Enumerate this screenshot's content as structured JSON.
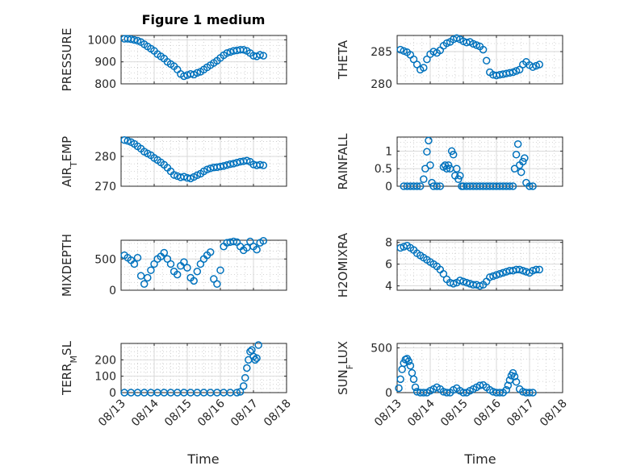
{
  "figure": {
    "title": "Figure 1 medium",
    "xlabel": "Time",
    "x_tick_labels": [
      "08/13",
      "08/14",
      "08/15",
      "08/16",
      "08/17",
      "08/18"
    ],
    "marker_color": "#0072BD"
  },
  "chart_data": [
    {
      "type": "scatter",
      "ylabel": "PRESSURE",
      "yticks": [
        "800",
        "900",
        "1000"
      ],
      "ylim": [
        800,
        1020
      ],
      "series": [
        {
          "x": [
            0.1,
            0.2,
            0.3,
            0.4,
            0.5,
            0.6,
            0.7,
            0.8,
            0.9,
            1.0,
            1.1,
            1.2,
            1.3,
            1.4,
            1.5,
            1.6,
            1.7,
            1.8,
            1.9,
            2.0,
            2.1,
            2.2,
            2.3,
            2.4,
            2.5,
            2.6,
            2.7,
            2.8,
            2.9,
            3.0,
            3.1,
            3.2,
            3.3,
            3.4,
            3.5,
            3.6,
            3.7,
            3.8,
            3.9,
            4.0,
            4.1,
            4.2,
            4.3
          ],
          "y": [
            1005,
            1005,
            1003,
            1000,
            996,
            990,
            980,
            970,
            960,
            950,
            935,
            925,
            915,
            900,
            890,
            880,
            865,
            845,
            835,
            840,
            845,
            842,
            850,
            855,
            865,
            875,
            885,
            895,
            905,
            918,
            930,
            940,
            945,
            950,
            952,
            955,
            955,
            950,
            940,
            928,
            925,
            932,
            928
          ]
        }
      ]
    },
    {
      "type": "scatter",
      "ylabel": "THETA",
      "yticks": [
        "280",
        "285"
      ],
      "ylim": [
        280,
        287.5
      ],
      "series": [
        {
          "x": [
            0.1,
            0.2,
            0.3,
            0.4,
            0.5,
            0.6,
            0.7,
            0.8,
            0.9,
            1.0,
            1.1,
            1.2,
            1.3,
            1.4,
            1.5,
            1.6,
            1.7,
            1.8,
            1.9,
            2.0,
            2.1,
            2.2,
            2.3,
            2.4,
            2.5,
            2.6,
            2.7,
            2.8,
            2.9,
            3.0,
            3.1,
            3.2,
            3.3,
            3.4,
            3.5,
            3.6,
            3.7,
            3.8,
            3.9,
            4.0,
            4.1,
            4.2,
            4.3
          ],
          "y": [
            285.3,
            285.1,
            284.9,
            284.5,
            283.8,
            283.0,
            282.2,
            282.5,
            283.8,
            284.6,
            285.0,
            284.8,
            285.2,
            285.9,
            286.3,
            286.5,
            286.9,
            287.1,
            286.9,
            286.6,
            286.4,
            286.5,
            286.2,
            286.0,
            285.8,
            285.3,
            283.6,
            281.8,
            281.4,
            281.3,
            281.4,
            281.5,
            281.6,
            281.7,
            281.8,
            282.0,
            282.2,
            283.0,
            283.4,
            282.9,
            282.6,
            282.8,
            283.0
          ]
        }
      ]
    },
    {
      "type": "scatter",
      "ylabel": "AIR_TEMP",
      "ylabel_main": "AIR",
      "ylabel_sub": "T",
      "ylabel_rest": "EMP",
      "yticks": [
        "270",
        "280"
      ],
      "ylim": [
        270,
        286.5
      ],
      "series": [
        {
          "x": [
            0.1,
            0.2,
            0.3,
            0.4,
            0.5,
            0.6,
            0.7,
            0.8,
            0.9,
            1.0,
            1.1,
            1.2,
            1.3,
            1.4,
            1.5,
            1.6,
            1.7,
            1.8,
            1.9,
            2.0,
            2.1,
            2.2,
            2.3,
            2.4,
            2.5,
            2.6,
            2.7,
            2.8,
            2.9,
            3.0,
            3.1,
            3.2,
            3.3,
            3.4,
            3.5,
            3.6,
            3.7,
            3.8,
            3.9,
            4.0,
            4.1,
            4.2,
            4.3
          ],
          "y": [
            285.5,
            285.2,
            284.8,
            284.2,
            283.4,
            282.6,
            281.6,
            281.0,
            280.4,
            279.5,
            278.8,
            278.0,
            277.2,
            276.2,
            275.0,
            273.8,
            273.4,
            273.0,
            273.2,
            272.8,
            272.6,
            273.1,
            273.7,
            274.2,
            275.0,
            275.6,
            276.0,
            276.3,
            276.4,
            276.6,
            276.8,
            277.1,
            277.4,
            277.6,
            277.9,
            278.2,
            278.4,
            278.6,
            278.2,
            277.3,
            277.0,
            277.2,
            277.0
          ]
        }
      ]
    },
    {
      "type": "scatter",
      "ylabel": "RAINFALL",
      "yticks": [
        "0",
        "0.5",
        "1"
      ],
      "ylim": [
        0,
        1.4
      ],
      "series": [
        {
          "x": [
            0.2,
            0.3,
            0.4,
            0.5,
            0.6,
            0.7,
            0.8,
            0.85,
            0.9,
            0.95,
            1.0,
            1.05,
            1.1,
            1.2,
            1.3,
            1.4,
            1.45,
            1.5,
            1.55,
            1.6,
            1.65,
            1.7,
            1.75,
            1.8,
            1.85,
            1.9,
            1.95,
            2.0,
            2.1,
            2.2,
            2.3,
            2.4,
            2.5,
            2.6,
            2.7,
            2.8,
            2.9,
            3.0,
            3.1,
            3.2,
            3.3,
            3.4,
            3.5,
            3.55,
            3.6,
            3.65,
            3.7,
            3.75,
            3.8,
            3.85,
            3.9,
            4.0,
            4.1
          ],
          "y": [
            0,
            0,
            0,
            0,
            0,
            0,
            0.2,
            0.5,
            0.98,
            1.3,
            0.6,
            0.1,
            0,
            0,
            0,
            0.55,
            0.6,
            0.5,
            0.6,
            0.5,
            1.0,
            0.9,
            0.3,
            0.5,
            0.2,
            0.3,
            0,
            0,
            0,
            0,
            0,
            0,
            0,
            0,
            0,
            0,
            0,
            0,
            0,
            0,
            0,
            0,
            0,
            0.5,
            0.9,
            1.2,
            0.6,
            0.4,
            0.7,
            0.8,
            0.1,
            0,
            0
          ]
        }
      ]
    },
    {
      "type": "scatter",
      "ylabel": "MIXDEPTH",
      "yticks": [
        "0",
        "500"
      ],
      "ylim": [
        0,
        800
      ],
      "series": [
        {
          "x": [
            0.1,
            0.2,
            0.3,
            0.4,
            0.5,
            0.6,
            0.7,
            0.8,
            0.9,
            1.0,
            1.1,
            1.2,
            1.3,
            1.4,
            1.5,
            1.6,
            1.7,
            1.8,
            1.9,
            2.0,
            2.1,
            2.2,
            2.3,
            2.4,
            2.5,
            2.6,
            2.7,
            2.8,
            2.9,
            3.0,
            3.1,
            3.2,
            3.3,
            3.4,
            3.5,
            3.6,
            3.7,
            3.8,
            3.9,
            4.0,
            4.1,
            4.2,
            4.3
          ],
          "y": [
            560,
            520,
            480,
            420,
            520,
            230,
            100,
            200,
            320,
            420,
            500,
            540,
            600,
            500,
            420,
            300,
            250,
            390,
            450,
            360,
            200,
            150,
            300,
            420,
            500,
            560,
            610,
            180,
            100,
            320,
            700,
            760,
            770,
            780,
            770,
            700,
            640,
            680,
            780,
            700,
            650,
            760,
            790
          ]
        }
      ]
    },
    {
      "type": "scatter",
      "ylabel": "H2OMIXRA",
      "yticks": [
        "4",
        "6",
        "8"
      ],
      "ylim": [
        3.6,
        8.2
      ],
      "series": [
        {
          "x": [
            0.1,
            0.2,
            0.3,
            0.4,
            0.5,
            0.6,
            0.7,
            0.8,
            0.9,
            1.0,
            1.1,
            1.2,
            1.3,
            1.4,
            1.5,
            1.6,
            1.7,
            1.8,
            1.9,
            2.0,
            2.1,
            2.2,
            2.3,
            2.4,
            2.5,
            2.6,
            2.7,
            2.8,
            2.9,
            3.0,
            3.1,
            3.2,
            3.3,
            3.4,
            3.5,
            3.6,
            3.7,
            3.8,
            3.9,
            4.0,
            4.1,
            4.2,
            4.3
          ],
          "y": [
            7.5,
            7.6,
            7.7,
            7.5,
            7.3,
            7.0,
            6.8,
            6.6,
            6.4,
            6.2,
            6.0,
            5.8,
            5.5,
            5.1,
            4.6,
            4.3,
            4.2,
            4.3,
            4.5,
            4.4,
            4.3,
            4.2,
            4.1,
            4.1,
            4.0,
            4.1,
            4.4,
            4.8,
            4.9,
            5.0,
            5.1,
            5.2,
            5.3,
            5.4,
            5.4,
            5.5,
            5.5,
            5.4,
            5.3,
            5.2,
            5.4,
            5.5,
            5.5
          ]
        }
      ]
    },
    {
      "type": "scatter",
      "ylabel": "TERR_MSL",
      "ylabel_main": "TERR",
      "ylabel_sub": "M",
      "ylabel_rest": "SL",
      "yticks": [
        "0",
        "100",
        "200"
      ],
      "ylim": [
        0,
        300
      ],
      "series": [
        {
          "x": [
            0.1,
            0.3,
            0.5,
            0.7,
            0.9,
            1.1,
            1.3,
            1.5,
            1.7,
            1.9,
            2.1,
            2.3,
            2.5,
            2.7,
            2.9,
            3.1,
            3.3,
            3.5,
            3.6,
            3.7,
            3.75,
            3.8,
            3.85,
            3.9,
            3.95,
            4.0,
            4.05,
            4.1,
            4.15
          ],
          "y": [
            0,
            0,
            0,
            0,
            0,
            0,
            0,
            0,
            0,
            0,
            0,
            0,
            0,
            0,
            0,
            0,
            0,
            0,
            5,
            40,
            90,
            150,
            200,
            250,
            260,
            220,
            200,
            210,
            290
          ]
        }
      ]
    },
    {
      "type": "scatter",
      "ylabel": "SUN_FLUX",
      "ylabel_main": "SUN",
      "ylabel_sub": "F",
      "ylabel_rest": "LUX",
      "yticks": [
        "0",
        "500"
      ],
      "ylim": [
        0,
        550
      ],
      "series": [
        {
          "x": [
            0.05,
            0.1,
            0.15,
            0.2,
            0.25,
            0.3,
            0.35,
            0.4,
            0.45,
            0.5,
            0.55,
            0.6,
            0.7,
            0.8,
            0.9,
            1.0,
            1.1,
            1.2,
            1.3,
            1.4,
            1.5,
            1.6,
            1.7,
            1.8,
            1.9,
            2.0,
            2.1,
            2.2,
            2.3,
            2.4,
            2.5,
            2.6,
            2.7,
            2.8,
            2.9,
            3.0,
            3.1,
            3.2,
            3.3,
            3.35,
            3.4,
            3.45,
            3.5,
            3.55,
            3.6,
            3.7,
            3.8,
            3.9,
            4.0,
            4.1
          ],
          "y": [
            50,
            150,
            260,
            330,
            370,
            380,
            350,
            300,
            220,
            150,
            60,
            10,
            0,
            0,
            0,
            20,
            40,
            60,
            40,
            10,
            0,
            0,
            30,
            50,
            20,
            0,
            0,
            20,
            40,
            60,
            80,
            85,
            60,
            30,
            10,
            0,
            0,
            0,
            30,
            80,
            140,
            190,
            220,
            180,
            120,
            40,
            10,
            0,
            0,
            0
          ]
        }
      ]
    }
  ]
}
